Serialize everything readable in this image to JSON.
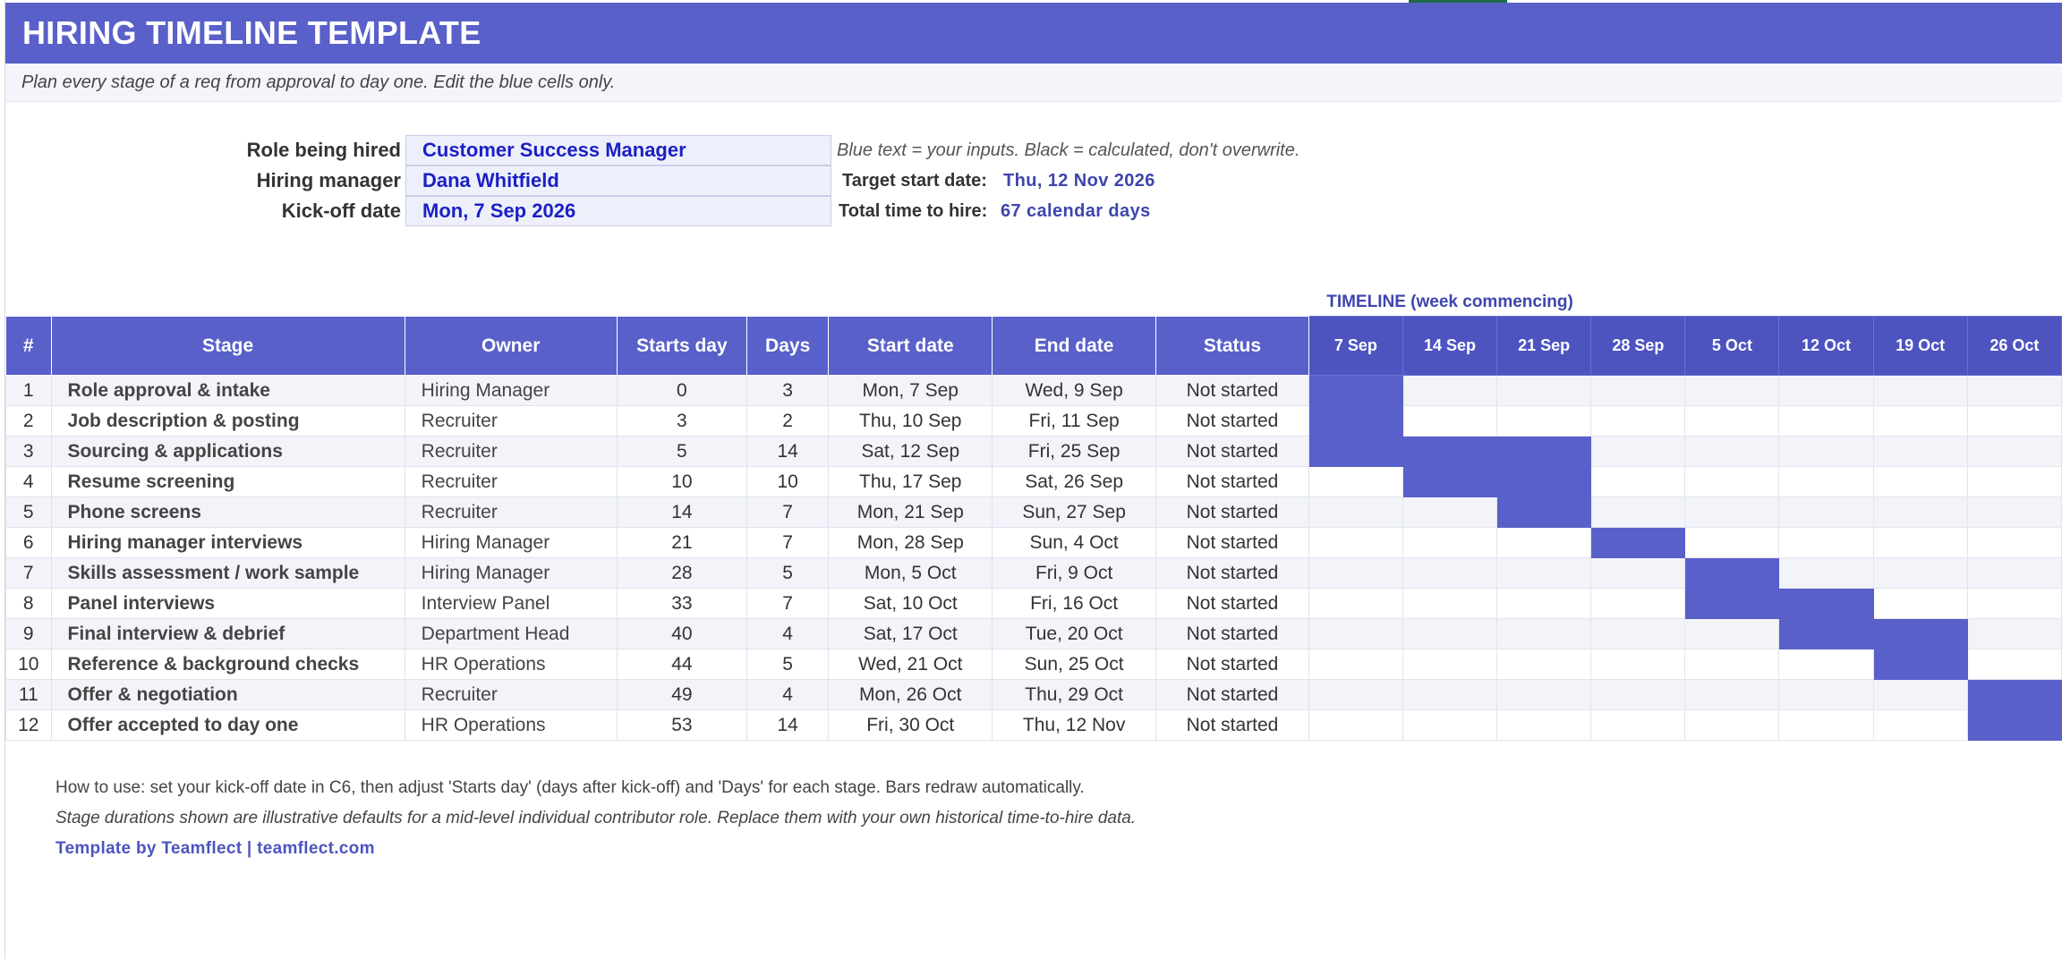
{
  "title": "HIRING TIMELINE TEMPLATE",
  "subtitle": "Plan every stage of a req from approval to day one. Edit the blue cells only.",
  "inputs": {
    "role_label": "Role being hired",
    "role_value": "Customer Success Manager",
    "manager_label": "Hiring manager",
    "manager_value": "Dana Whitfield",
    "kickoff_label": "Kick-off date",
    "kickoff_value": "Mon, 7 Sep 2026"
  },
  "legend_note": "Blue text = your inputs.  Black = calculated, don't overwrite.",
  "calc": {
    "target_label": "Target start date:",
    "target_value": "Thu, 12 Nov 2026",
    "total_label": "Total time to hire:",
    "total_value": "67 calendar days"
  },
  "timeline_caption": "TIMELINE (week commencing)",
  "columns": [
    "#",
    "Stage",
    "Owner",
    "Starts day",
    "Days",
    "Start date",
    "End date",
    "Status"
  ],
  "weeks": [
    "7 Sep",
    "14 Sep",
    "21 Sep",
    "28 Sep",
    "5 Oct",
    "12 Oct",
    "19 Oct",
    "26 Oct"
  ],
  "rows": [
    {
      "num": "1",
      "stage": "Role approval & intake",
      "owner": "Hiring Manager",
      "starts": "0",
      "days": "3",
      "start": "Mon, 7 Sep",
      "end": "Wed, 9 Sep",
      "status": "Not started",
      "bars": [
        0
      ]
    },
    {
      "num": "2",
      "stage": "Job description & posting",
      "owner": "Recruiter",
      "starts": "3",
      "days": "2",
      "start": "Thu, 10 Sep",
      "end": "Fri, 11 Sep",
      "status": "Not started",
      "bars": [
        0
      ]
    },
    {
      "num": "3",
      "stage": "Sourcing & applications",
      "owner": "Recruiter",
      "starts": "5",
      "days": "14",
      "start": "Sat, 12 Sep",
      "end": "Fri, 25 Sep",
      "status": "Not started",
      "bars": [
        0,
        1,
        2
      ]
    },
    {
      "num": "4",
      "stage": "Resume screening",
      "owner": "Recruiter",
      "starts": "10",
      "days": "10",
      "start": "Thu, 17 Sep",
      "end": "Sat, 26 Sep",
      "status": "Not started",
      "bars": [
        1,
        2
      ]
    },
    {
      "num": "5",
      "stage": "Phone screens",
      "owner": "Recruiter",
      "starts": "14",
      "days": "7",
      "start": "Mon, 21 Sep",
      "end": "Sun, 27 Sep",
      "status": "Not started",
      "bars": [
        2
      ]
    },
    {
      "num": "6",
      "stage": "Hiring manager interviews",
      "owner": "Hiring Manager",
      "starts": "21",
      "days": "7",
      "start": "Mon, 28 Sep",
      "end": "Sun, 4 Oct",
      "status": "Not started",
      "bars": [
        3
      ]
    },
    {
      "num": "7",
      "stage": "Skills assessment / work sample",
      "owner": "Hiring Manager",
      "starts": "28",
      "days": "5",
      "start": "Mon, 5 Oct",
      "end": "Fri, 9 Oct",
      "status": "Not started",
      "bars": [
        4
      ]
    },
    {
      "num": "8",
      "stage": "Panel interviews",
      "owner": "Interview Panel",
      "starts": "33",
      "days": "7",
      "start": "Sat, 10 Oct",
      "end": "Fri, 16 Oct",
      "status": "Not started",
      "bars": [
        4,
        5
      ]
    },
    {
      "num": "9",
      "stage": "Final interview & debrief",
      "owner": "Department Head",
      "starts": "40",
      "days": "4",
      "start": "Sat, 17 Oct",
      "end": "Tue, 20 Oct",
      "status": "Not started",
      "bars": [
        5,
        6
      ]
    },
    {
      "num": "10",
      "stage": "Reference & background checks",
      "owner": "HR Operations",
      "starts": "44",
      "days": "5",
      "start": "Wed, 21 Oct",
      "end": "Sun, 25 Oct",
      "status": "Not started",
      "bars": [
        6
      ]
    },
    {
      "num": "11",
      "stage": "Offer & negotiation",
      "owner": "Recruiter",
      "starts": "49",
      "days": "4",
      "start": "Mon, 26 Oct",
      "end": "Thu, 29 Oct",
      "status": "Not started",
      "bars": [
        7
      ]
    },
    {
      "num": "12",
      "stage": "Offer accepted to day one",
      "owner": "HR Operations",
      "starts": "53",
      "days": "14",
      "start": "Fri, 30 Oct",
      "end": "Thu, 12 Nov",
      "status": "Not started",
      "bars": [
        7
      ]
    }
  ],
  "footer": {
    "how_to": "How to use: set your kick-off date in C6, then adjust 'Starts day' (days after kick-off) and 'Days' for each stage. Bars redraw automatically.",
    "note": "Stage durations shown are illustrative defaults for a mid-level individual contributor role. Replace them with your own historical time-to-hire data.",
    "brand": "Template by Teamflect  |  teamflect.com"
  },
  "colors": {
    "header_bg": "#5960c9",
    "bar": "#5960c9",
    "input_text": "#1b1fc6",
    "accent_text": "#3e45ad"
  }
}
